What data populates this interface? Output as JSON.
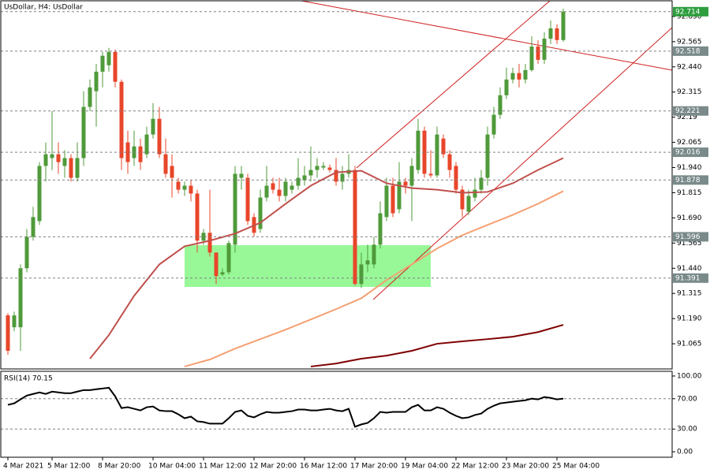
{
  "chart_data": [
    {
      "type": "candlestick",
      "title": "UsDollar, H4: UsDollar",
      "categories": [
        "4 Mar 2021",
        null,
        null,
        null,
        null,
        null,
        null,
        "5 Mar 12:00",
        null,
        null,
        null,
        null,
        null,
        null,
        null,
        "8 Mar 20:00",
        null,
        null,
        null,
        null,
        null,
        null,
        null,
        "10 Mar 04:00",
        null,
        null,
        null,
        null,
        null,
        null,
        null,
        "11 Mar 12:00",
        null,
        null,
        null,
        null,
        null,
        null,
        null,
        "12 Mar 20:00",
        null,
        null,
        null,
        null,
        null,
        null,
        null,
        "16 Mar 12:00",
        null,
        null,
        null,
        null,
        null,
        null,
        null,
        "17 Mar 20:00",
        null,
        null,
        null,
        null,
        null,
        null,
        null,
        "19 Mar 04:00",
        null,
        null,
        null,
        null,
        null,
        null,
        null,
        "22 Mar 12:00",
        null,
        null,
        null,
        null,
        null,
        null,
        null,
        "23 Mar 20:00",
        null,
        null,
        null,
        null,
        null,
        null,
        null,
        "25 Mar 04:00",
        null
      ],
      "open": [
        91.206,
        91.147,
        91.147,
        91.44,
        91.596,
        91.674,
        91.948,
        91.987,
        92.006,
        91.948,
        91.987,
        91.889,
        91.987,
        92.241,
        92.319,
        92.416,
        92.448,
        92.514,
        92.366,
        92.065,
        91.987,
        92.045,
        92.006,
        92.104,
        92.182,
        92.006,
        91.948,
        91.87,
        91.83,
        91.85,
        91.811,
        91.577,
        91.616,
        91.518,
        91.409,
        91.42,
        91.557,
        91.889,
        91.889,
        91.694,
        91.635,
        91.791,
        91.862,
        91.83,
        91.799,
        91.83,
        91.85,
        91.877,
        91.901,
        91.928,
        91.94,
        91.94,
        91.928,
        91.87,
        91.909,
        91.928,
        91.362,
        91.459,
        91.459,
        91.557,
        91.694,
        91.85,
        91.733,
        91.87,
        91.85,
        91.928,
        92.123,
        91.909,
        91.901,
        92.084,
        92.006,
        91.948,
        91.83,
        91.721,
        91.791,
        91.83,
        91.889,
        92.104,
        92.202,
        92.299,
        92.377,
        92.409,
        92.377,
        92.424,
        92.541,
        92.475,
        92.58,
        92.631,
        92.573
      ],
      "high": [
        91.217,
        91.225,
        91.459,
        91.635,
        91.745,
        91.967,
        92.065,
        92.221,
        92.065,
        92.026,
        92.006,
        92.065,
        92.319,
        92.377,
        92.455,
        92.514,
        92.534,
        92.526,
        92.377,
        92.123,
        92.123,
        92.084,
        92.143,
        92.26,
        92.241,
        92.084,
        92.006,
        91.889,
        91.87,
        91.877,
        91.83,
        91.635,
        91.83,
        91.518,
        91.44,
        91.577,
        91.948,
        91.948,
        91.909,
        91.713,
        91.83,
        91.948,
        91.889,
        91.889,
        91.889,
        91.87,
        91.987,
        91.948,
        92.045,
        91.987,
        91.967,
        91.955,
        91.987,
        91.948,
        92.006,
        91.948,
        91.518,
        91.557,
        91.596,
        91.772,
        91.889,
        91.889,
        91.967,
        91.889,
        91.987,
        92.182,
        92.143,
        92.026,
        92.143,
        92.104,
        92.026,
        91.967,
        91.85,
        91.83,
        91.889,
        91.928,
        92.143,
        92.241,
        92.338,
        92.436,
        92.436,
        92.455,
        92.455,
        92.592,
        92.573,
        92.612,
        92.67,
        92.651,
        92.729
      ],
      "low": [
        91.01,
        91.127,
        91.03,
        91.42,
        91.577,
        91.655,
        91.87,
        91.928,
        91.909,
        91.889,
        91.87,
        91.87,
        91.948,
        92.221,
        92.143,
        92.338,
        92.416,
        92.338,
        91.928,
        91.909,
        91.948,
        91.928,
        91.987,
        92.084,
        91.987,
        91.889,
        91.791,
        91.811,
        91.799,
        91.772,
        91.518,
        91.557,
        91.498,
        91.362,
        91.401,
        91.409,
        91.518,
        91.83,
        91.655,
        91.596,
        91.616,
        91.772,
        91.811,
        91.772,
        91.772,
        91.811,
        91.83,
        91.85,
        91.87,
        91.889,
        91.928,
        91.916,
        91.85,
        91.83,
        91.889,
        91.354,
        91.342,
        91.42,
        91.44,
        91.538,
        91.674,
        91.694,
        91.713,
        91.811,
        91.674,
        91.909,
        91.889,
        91.889,
        91.889,
        91.987,
        91.889,
        91.811,
        91.694,
        91.705,
        91.772,
        91.811,
        91.85,
        92.084,
        92.182,
        92.28,
        92.358,
        92.338,
        92.358,
        92.416,
        92.455,
        92.455,
        92.553,
        92.553,
        92.565
      ],
      "close": [
        91.03,
        91.206,
        91.44,
        91.596,
        91.694,
        91.948,
        92.006,
        92.006,
        91.967,
        91.987,
        91.889,
        91.987,
        92.241,
        92.338,
        92.416,
        92.495,
        92.514,
        92.366,
        91.987,
        91.967,
        92.045,
        91.967,
        92.104,
        92.182,
        92.006,
        91.909,
        91.889,
        91.83,
        91.85,
        91.811,
        91.577,
        91.616,
        91.518,
        91.401,
        91.42,
        91.565,
        91.909,
        91.909,
        91.674,
        91.616,
        91.791,
        91.85,
        91.83,
        91.799,
        91.87,
        91.85,
        91.889,
        91.901,
        91.928,
        91.948,
        91.948,
        91.928,
        91.87,
        91.909,
        91.928,
        91.362,
        91.459,
        91.479,
        91.557,
        91.713,
        91.85,
        91.713,
        91.87,
        91.85,
        91.948,
        92.123,
        91.909,
        91.901,
        92.104,
        92.006,
        91.928,
        91.83,
        91.733,
        91.799,
        91.83,
        91.889,
        92.104,
        92.202,
        92.299,
        92.377,
        92.409,
        92.377,
        92.424,
        92.541,
        92.475,
        92.58,
        92.631,
        92.573,
        92.714
      ],
      "up_color": "#4f9a3a",
      "down_color": "#e8462a",
      "series": [
        {
          "color": "#c0504d",
          "x": [
            13,
            16,
            20,
            24,
            28,
            32,
            36,
            40,
            44,
            48,
            52,
            56,
            60,
            64,
            68,
            72,
            76,
            80,
            84,
            88
          ],
          "values": [
            90.991,
            91.108,
            91.303,
            91.459,
            91.549,
            91.577,
            91.612,
            91.666,
            91.76,
            91.85,
            91.916,
            91.924,
            91.862,
            91.838,
            91.83,
            91.815,
            91.819,
            91.862,
            91.928,
            91.987
          ]
        },
        {
          "color": "#f4a072",
          "x": [
            28,
            32,
            36,
            40,
            44,
            48,
            52,
            56,
            60,
            64,
            68,
            72,
            76,
            80,
            84,
            88
          ],
          "values": [
            90.952,
            90.987,
            91.041,
            91.088,
            91.135,
            91.186,
            91.237,
            91.291,
            91.381,
            91.459,
            91.538,
            91.604,
            91.655,
            91.705,
            91.76,
            91.823
          ]
        },
        {
          "color": "#7f0000",
          "x": [
            48,
            52,
            56,
            60,
            64,
            68,
            72,
            76,
            80,
            84,
            88
          ],
          "values": [
            90.952,
            90.967,
            90.991,
            91.006,
            91.03,
            91.065,
            91.077,
            91.088,
            91.1,
            91.123,
            91.159
          ]
        }
      ],
      "ylim": [
        90.94,
        92.768
      ],
      "yticks": [
        {
          "value": 92.69,
          "label": "92.690"
        },
        92.565,
        {
          "value": 92.44,
          "label": "92.440"
        },
        92.315,
        92.19,
        92.065,
        {
          "value": 91.94,
          "label": "91.940"
        },
        91.815,
        {
          "value": 91.69,
          "label": "91.690"
        },
        91.565,
        {
          "value": 91.44,
          "label": "91.440"
        },
        91.315,
        {
          "value": 91.19,
          "label": "91.190"
        },
        91.065
      ],
      "levels": [
        92.714,
        92.518,
        92.221,
        92.016,
        91.878,
        91.596,
        91.391
      ]
    },
    {
      "type": "line",
      "title": "RSI(14) 70.15",
      "color": "#000000",
      "values": [
        61.9,
        63.9,
        69.1,
        74.2,
        76.3,
        78.4,
        76.3,
        79.4,
        78.4,
        77.3,
        77.3,
        79.4,
        81.4,
        81.4,
        82.5,
        83.5,
        84.5,
        73.2,
        57.7,
        58.8,
        56.7,
        54.6,
        58.8,
        59.8,
        54.6,
        53.6,
        53.6,
        49.5,
        44.3,
        46.4,
        40.2,
        39.2,
        37.1,
        37.1,
        37.1,
        44.3,
        52.6,
        54.6,
        47.4,
        45.4,
        49.5,
        52.6,
        51.6,
        51.6,
        52.6,
        53.6,
        55.7,
        55.7,
        54.6,
        54.6,
        55.7,
        56.7,
        54.6,
        53.6,
        56.7,
        33.0,
        36.1,
        38.1,
        44.3,
        52.6,
        51.6,
        52.6,
        52.6,
        52.6,
        58.8,
        61.9,
        54.6,
        54.6,
        58.8,
        56.7,
        51.6,
        47.4,
        44.3,
        45.4,
        48.5,
        50.5,
        56.7,
        60.8,
        63.9,
        65.0,
        66.0,
        67.0,
        68.0,
        70.1,
        69.1,
        72.2,
        71.1,
        69.1,
        70.15
      ],
      "ylim": [
        -7.2,
        106.2
      ],
      "yticks": [
        {
          "value": 100,
          "label": "100.00"
        },
        {
          "value": 70,
          "label": "70.00"
        },
        {
          "value": 30,
          "label": "30.00"
        },
        {
          "value": 0,
          "label": "0.00"
        }
      ],
      "levels": [
        70,
        30
      ]
    }
  ]
}
